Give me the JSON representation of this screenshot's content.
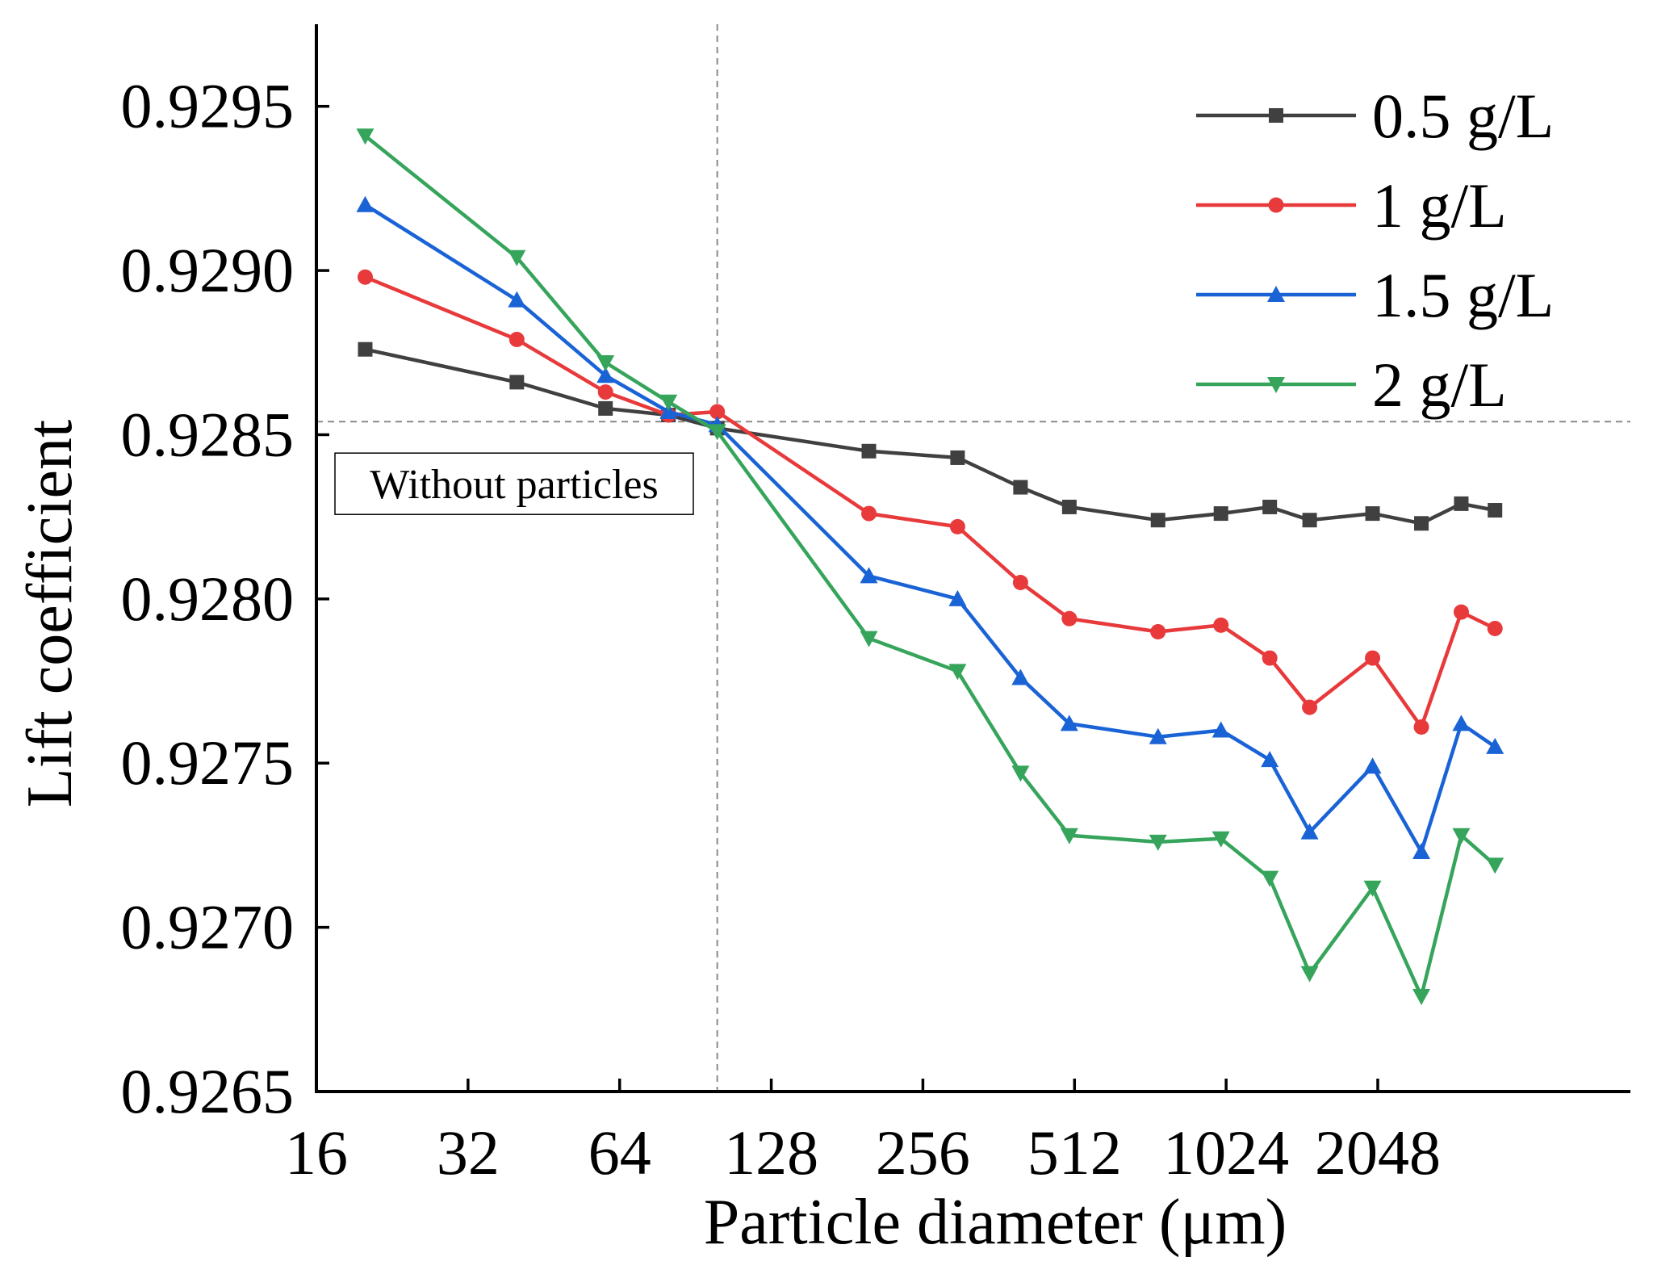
{
  "chart_data": {
    "type": "line",
    "xlabel": "Particle diameter (μm)",
    "ylabel": "Lift coefficient",
    "x_scale": "log2",
    "xlim": [
      16,
      6500
    ],
    "ylim": [
      0.9265,
      0.92975
    ],
    "x_ticks": [
      16,
      32,
      64,
      128,
      256,
      512,
      1024,
      2048
    ],
    "x_tick_labels": [
      "16",
      "32",
      "64",
      "128",
      "256",
      "512",
      "1024",
      "2048"
    ],
    "y_ticks": [
      0.9265,
      0.927,
      0.9275,
      0.928,
      0.9285,
      0.929,
      0.9295
    ],
    "y_tick_labels": [
      "0.9265",
      "0.9270",
      "0.9275",
      "0.9280",
      "0.9285",
      "0.9290",
      "0.9295"
    ],
    "reference_lines": {
      "horizontal": {
        "y": 0.92854,
        "label": "Without particles"
      },
      "vertical": {
        "x": 100
      }
    },
    "x": [
      20,
      40,
      60,
      80,
      100,
      200,
      300,
      400,
      500,
      750,
      1000,
      1250,
      1500,
      2000,
      2500,
      3000,
      3500
    ],
    "series": [
      {
        "name": "0.5 g/L",
        "color": "#404040",
        "marker": "square",
        "values": [
          0.92876,
          0.92866,
          0.92858,
          0.92856,
          0.92852,
          0.92845,
          0.92843,
          0.92834,
          0.92828,
          0.92824,
          0.92826,
          0.92828,
          0.92824,
          0.92826,
          0.92823,
          0.92829,
          0.92827
        ]
      },
      {
        "name": "1 g/L",
        "color": "#e8393b",
        "marker": "circle",
        "values": [
          0.92898,
          0.92879,
          0.92863,
          0.92856,
          0.92857,
          0.92826,
          0.92822,
          0.92805,
          0.92794,
          0.9279,
          0.92792,
          0.92782,
          0.92767,
          0.92782,
          0.92761,
          0.92796,
          0.92791
        ]
      },
      {
        "name": "1.5 g/L",
        "color": "#1a63d6",
        "marker": "triangle-up",
        "values": [
          0.9292,
          0.92891,
          0.92868,
          0.92857,
          0.92853,
          0.92807,
          0.928,
          0.92776,
          0.92762,
          0.92758,
          0.9276,
          0.92751,
          0.92729,
          0.92749,
          0.92723,
          0.92762,
          0.92755
        ]
      },
      {
        "name": "2 g/L",
        "color": "#36a55b",
        "marker": "triangle-down",
        "values": [
          0.92941,
          0.92904,
          0.92872,
          0.9286,
          0.92851,
          0.92788,
          0.92778,
          0.92747,
          0.92728,
          0.92726,
          0.92727,
          0.92715,
          0.92686,
          0.92712,
          0.92679,
          0.92728,
          0.92719
        ]
      }
    ],
    "legend": {
      "position": "top-right"
    }
  }
}
